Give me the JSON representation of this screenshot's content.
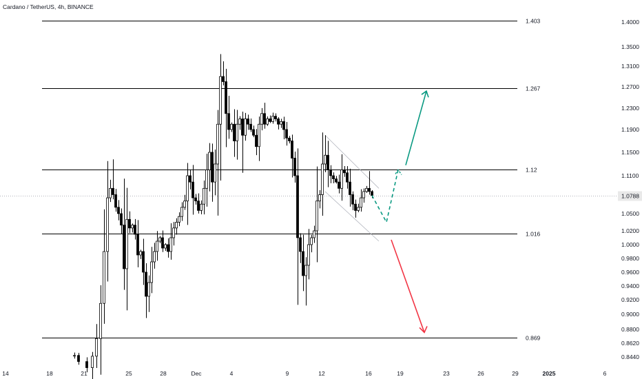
{
  "chart_data": {
    "type": "candlestick",
    "title": "Cardano / TetherUS, 4h, BINANCE",
    "y_axis": {
      "ticks": [
        "1.4000",
        "1.3500",
        "1.3100",
        "1.2700",
        "1.2300",
        "1.1900",
        "1.1500",
        "1.1100",
        "1.0500",
        "1.0200",
        "1.0000",
        "0.9800",
        "0.9600",
        "0.9400",
        "0.9200",
        "0.9000",
        "0.8800",
        "0.8620",
        "0.8440"
      ],
      "scale": "log",
      "range": [
        0.835,
        1.43
      ]
    },
    "x_axis": {
      "ticks": [
        {
          "label": "14",
          "bold": false
        },
        {
          "label": "18",
          "bold": false
        },
        {
          "label": "21",
          "bold": false
        },
        {
          "label": "25",
          "bold": false
        },
        {
          "label": "28",
          "bold": false
        },
        {
          "label": "Dec",
          "bold": false
        },
        {
          "label": "4",
          "bold": false
        },
        {
          "label": "9",
          "bold": false
        },
        {
          "label": "12",
          "bold": false
        },
        {
          "label": "16",
          "bold": false
        },
        {
          "label": "19",
          "bold": false
        },
        {
          "label": "23",
          "bold": false
        },
        {
          "label": "26",
          "bold": false
        },
        {
          "label": "29",
          "bold": false
        },
        {
          "label": "2025",
          "bold": true
        },
        {
          "label": "6",
          "bold": false
        }
      ]
    },
    "levels": [
      {
        "label": "1.403",
        "value": 1.403
      },
      {
        "label": "1.267",
        "value": 1.267
      },
      {
        "label": "1.12",
        "value": 1.12
      },
      {
        "label": "1.016",
        "value": 1.016
      },
      {
        "label": "0.869",
        "value": 0.869
      }
    ],
    "last_price": {
      "label": "1.0788",
      "value": 1.0788
    },
    "channel": {
      "from": [
        1.18,
        1.09
      ],
      "to": [
        1.085,
        1.005
      ]
    },
    "projections": {
      "bullish_path": [
        1.0788,
        1.035,
        1.12,
        1.262
      ],
      "bearish_target": 0.876
    },
    "colors": {
      "up_candle": "#ffffff",
      "down_candle": "#000000",
      "wick": "#000000",
      "bullish_arrow": "#089981",
      "bearish_arrow": "#f23645",
      "level_line": "#000000",
      "price_tag": "#e9e9e9",
      "axis_text": "#131722"
    }
  }
}
